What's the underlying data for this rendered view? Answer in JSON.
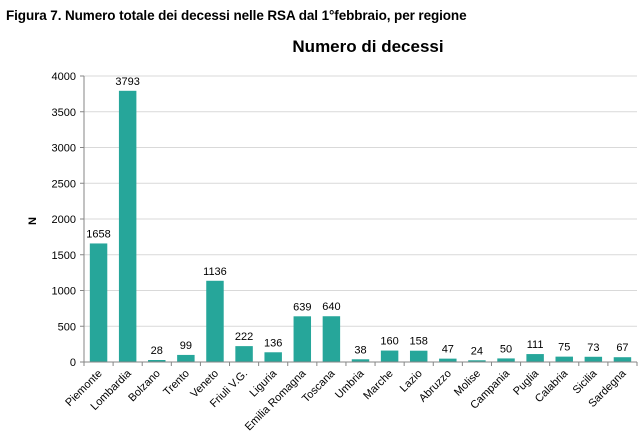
{
  "figure_caption": "Figura 7. Numero totale dei decessi nelle RSA dal 1°febbraio, per regione",
  "colors": {
    "bar": "#26a69a",
    "grid": "#d9d9d9",
    "axis": "#868686"
  },
  "chart_data": {
    "type": "bar",
    "title": "Numero di decessi",
    "xlabel": "",
    "ylabel": "N",
    "ylim": [
      0,
      4000
    ],
    "yticks": [
      0,
      500,
      1000,
      1500,
      2000,
      2500,
      3000,
      3500,
      4000
    ],
    "grid": true,
    "categories": [
      "Piemonte",
      "Lombardia",
      "Bolzano",
      "Trento",
      "Veneto",
      "Friuli V.G.",
      "Liguria",
      "Emilia Romagna",
      "Toscana",
      "Umbria",
      "Marche",
      "Lazio",
      "Abruzzo",
      "Molise",
      "Campania",
      "Puglia",
      "Calabria",
      "Sicilia",
      "Sardegna"
    ],
    "values": [
      1658,
      3793,
      28,
      99,
      1136,
      222,
      136,
      639,
      640,
      38,
      160,
      158,
      47,
      24,
      50,
      111,
      75,
      73,
      67
    ]
  }
}
